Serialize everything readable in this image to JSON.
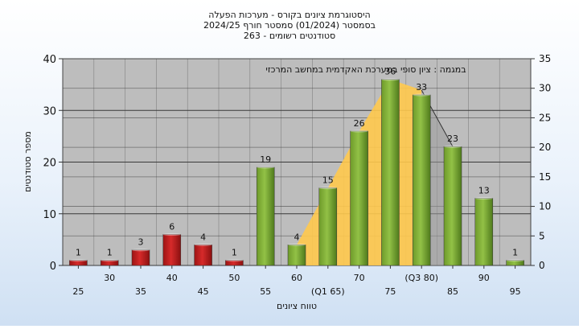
{
  "chart_data": {
    "type": "bar",
    "title_lines": [
      "היסטוגרמת ציונים בקורס - מערכות הפעלה",
      "בסמסטר  (01/2024)  סמסטר חורף  2024/25",
      "סטודנטים רשומים - 263"
    ],
    "annotation": "במגמה : ציון סופי במערכת האקדמית במחשב המרכזי",
    "xlabel": "טווח ציונים",
    "ylabel": "מספר סטודנטים",
    "ylim": [
      0,
      40
    ],
    "y2lim": [
      0,
      35
    ],
    "yticks": [
      "0",
      "10",
      "20",
      "30",
      "40"
    ],
    "y2ticks": [
      "0",
      "5",
      "10",
      "15",
      "20",
      "25",
      "30",
      "35"
    ],
    "categories": [
      "25",
      "30",
      "35",
      "40",
      "45",
      "50",
      "55",
      "60",
      "(Q1 65)",
      "70",
      "75",
      "(Q3 80)",
      "85",
      "90",
      "95"
    ],
    "values": [
      1,
      1,
      3,
      6,
      4,
      1,
      19,
      4,
      15,
      26,
      36,
      33,
      23,
      13,
      1
    ],
    "labels": [
      "1",
      "1",
      "3",
      "6",
      "4",
      "1",
      "19",
      "4",
      "15",
      "26",
      "36",
      "33",
      "23",
      "13",
      "1"
    ],
    "red_bar_count": 6,
    "band_from_index": 7,
    "band_to_index": 11,
    "grid": true,
    "colors": {
      "fail_bar": "#d62a2a",
      "pass_bar": "#92c146",
      "band": "#ffc94d",
      "plot_bg": "#bdbdbd",
      "grid": "#3a3a3a",
      "text": "#111111"
    }
  }
}
